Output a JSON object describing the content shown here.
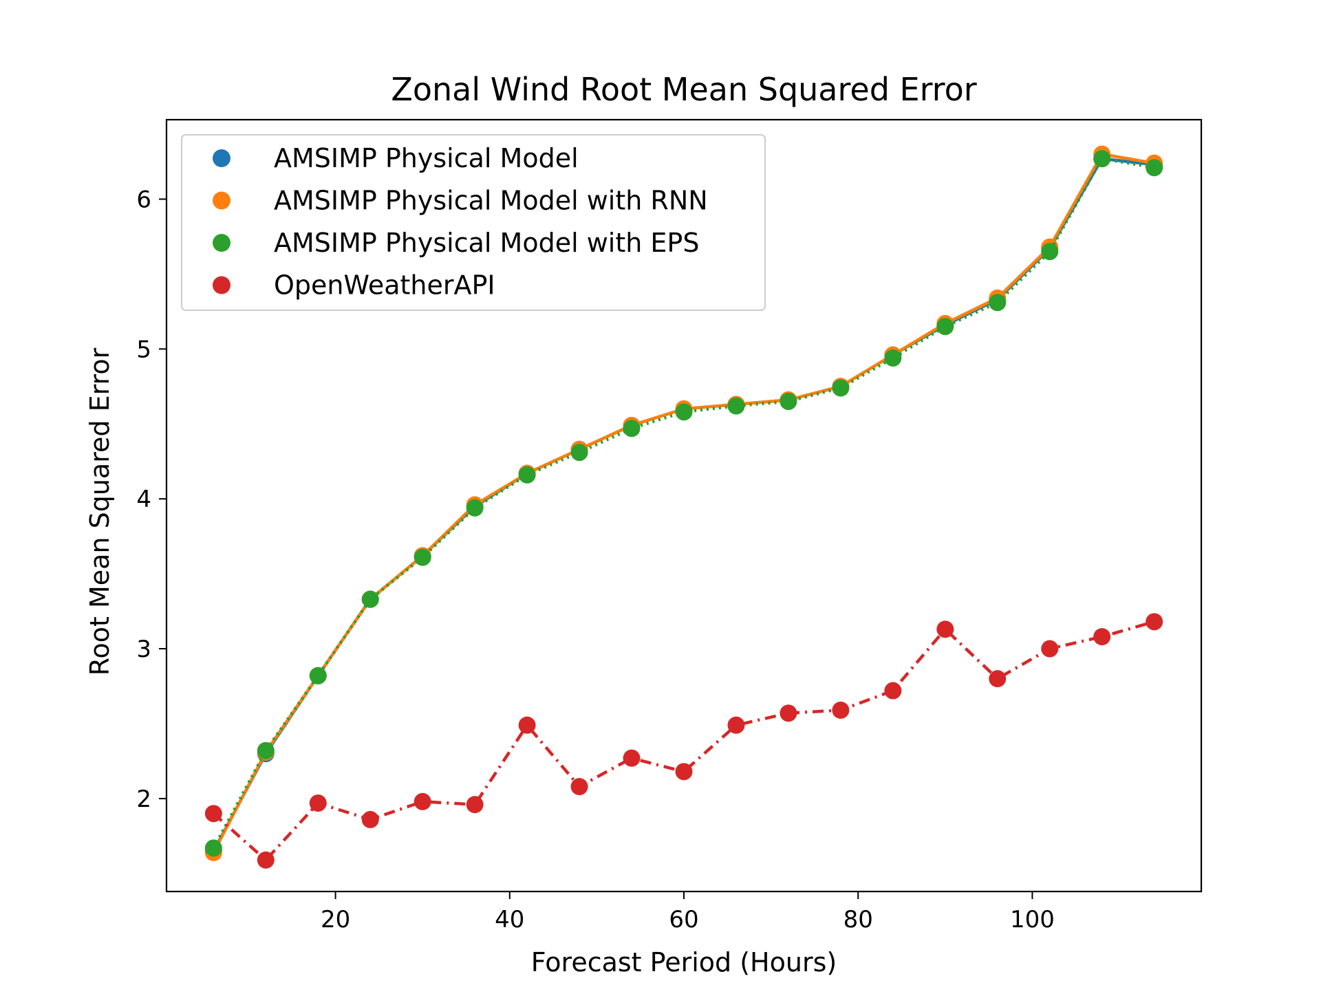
{
  "chart_data": {
    "type": "line",
    "title": "Zonal Wind Root Mean Squared Error",
    "xlabel": "Forecast Period (Hours)",
    "ylabel": "Root Mean Squared Error",
    "x": [
      6,
      12,
      18,
      24,
      30,
      36,
      42,
      48,
      54,
      60,
      66,
      72,
      78,
      84,
      90,
      96,
      102,
      108,
      114
    ],
    "xlim": [
      0.6,
      119.4
    ],
    "ylim": [
      1.38,
      6.53
    ],
    "xticks": [
      20,
      40,
      60,
      80,
      100
    ],
    "yticks": [
      2,
      3,
      4,
      5,
      6
    ],
    "grid": false,
    "legend_position": "upper-left",
    "series": [
      {
        "name": "AMSIMP Physical Model",
        "color": "#1f77b4",
        "linestyle": "solid",
        "values": [
          1.65,
          2.3,
          2.82,
          3.33,
          3.62,
          3.95,
          4.17,
          4.33,
          4.49,
          4.6,
          4.63,
          4.66,
          4.75,
          4.96,
          5.16,
          5.33,
          5.67,
          6.27,
          6.23
        ]
      },
      {
        "name": "AMSIMP Physical Model with RNN",
        "color": "#ff7f0e",
        "linestyle": "solid",
        "values": [
          1.64,
          2.31,
          2.82,
          3.33,
          3.62,
          3.96,
          4.17,
          4.33,
          4.49,
          4.6,
          4.63,
          4.66,
          4.75,
          4.96,
          5.17,
          5.34,
          5.68,
          6.3,
          6.24
        ]
      },
      {
        "name": "AMSIMP Physical Model with EPS",
        "color": "#2ca02c",
        "linestyle": "dotted",
        "values": [
          1.67,
          2.32,
          2.82,
          3.33,
          3.61,
          3.94,
          4.16,
          4.31,
          4.47,
          4.58,
          4.62,
          4.65,
          4.74,
          4.94,
          5.15,
          5.31,
          5.65,
          6.27,
          6.21
        ]
      },
      {
        "name": "OpenWeatherAPI",
        "color": "#d62728",
        "linestyle": "dashdot",
        "values": [
          1.9,
          1.59,
          1.97,
          1.86,
          1.98,
          1.96,
          2.49,
          2.08,
          2.27,
          2.18,
          2.49,
          2.57,
          2.59,
          2.72,
          3.13,
          2.8,
          3.0,
          3.08,
          3.18
        ]
      }
    ]
  }
}
